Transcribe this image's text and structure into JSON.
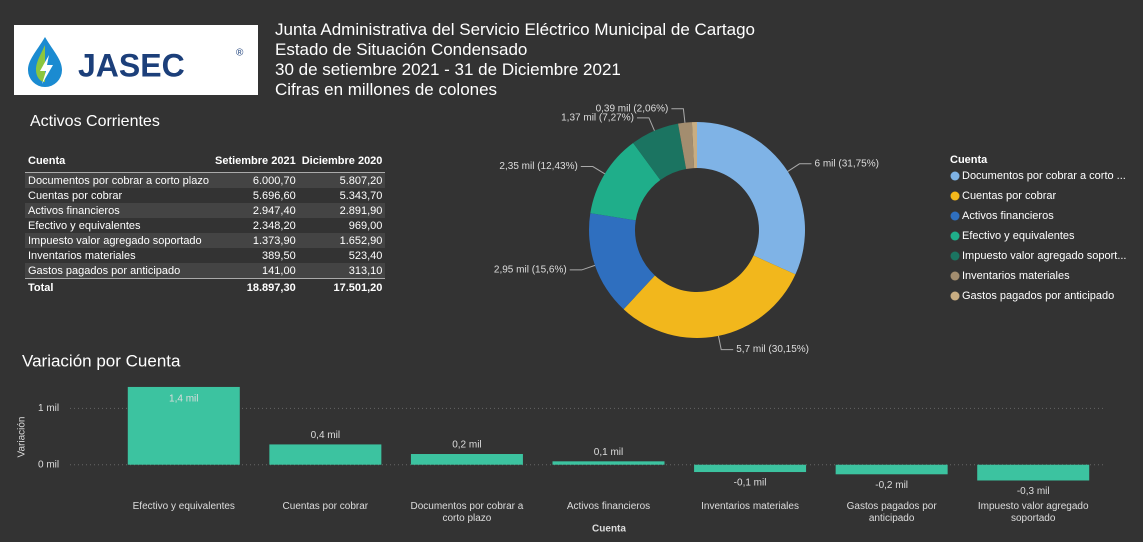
{
  "header": {
    "logo_text": "JASEC",
    "logo_mark": "®",
    "lines": [
      "Junta Administrativa del Servicio Eléctrico Municipal de Cartago",
      "Estado de Situación Condensado",
      "30 de setiembre 2021 - 31 de Diciembre 2021",
      "Cifras en millones de colones"
    ]
  },
  "table": {
    "title": "Activos Corrientes",
    "columns": [
      "Cuenta",
      "Setiembre 2021",
      "Diciembre 2020"
    ],
    "rows": [
      [
        "Documentos por cobrar a corto plazo",
        "6.000,70",
        "5.807,20"
      ],
      [
        "Cuentas por cobrar",
        "5.696,60",
        "5.343,70"
      ],
      [
        "Activos financieros",
        "2.947,40",
        "2.891,90"
      ],
      [
        "Efectivo y equivalentes",
        "2.348,20",
        "969,00"
      ],
      [
        "Impuesto valor agregado soportado",
        "1.373,90",
        "1.652,90"
      ],
      [
        "Inventarios materiales",
        "389,50",
        "523,40"
      ],
      [
        "Gastos pagados por anticipado",
        "141,00",
        "313,10"
      ]
    ],
    "total": [
      "Total",
      "18.897,30",
      "17.501,20"
    ]
  },
  "chart_data": [
    {
      "type": "pie",
      "legend_title": "Cuenta",
      "legend": "right",
      "categories": [
        "Documentos por cobrar a corto ...",
        "Cuentas por cobrar",
        "Activos financieros",
        "Efectivo y equivalentes",
        "Impuesto valor agregado soport...",
        "Inventarios materiales",
        "Gastos pagados por anticipado"
      ],
      "values": [
        31.75,
        30.15,
        15.6,
        12.43,
        7.27,
        2.06,
        0.75
      ],
      "value_labels": [
        "6 mil (31,75%)",
        "5,7 mil (30,15%)",
        "2,95 mil (15,6%)",
        "2,35 mil (12,43%)",
        "1,37 mil (7,27%)",
        "0,39 mil (2,06%)",
        null
      ],
      "colors": [
        "#7fb3e6",
        "#f2b71c",
        "#2f6fbf",
        "#1fae8a",
        "#1b7461",
        "#a38d6f",
        "#c8ad82"
      ]
    },
    {
      "type": "bar",
      "title": "Variación por Cuenta",
      "xlabel": "Cuenta",
      "ylabel": "Variación",
      "color": "#3cc3a0",
      "grid": true,
      "categories": [
        "Efectivo y equivalentes",
        "Cuentas por cobrar",
        "Documentos por cobrar a corto plazo",
        "Activos financieros",
        "Inventarios materiales",
        "Gastos pagados por anticipado",
        "Impuesto valor agregado soportado"
      ],
      "values": [
        1.38,
        0.36,
        0.19,
        0.06,
        -0.13,
        -0.17,
        -0.28
      ],
      "value_labels": [
        "1,4 mil",
        "0,4 mil",
        "0,2 mil",
        "0,1 mil",
        "-0,1 mil",
        "-0,2 mil",
        "-0,3 mil"
      ],
      "ylim": [
        -0.36,
        1.45
      ],
      "yticks": [
        {
          "value": 0,
          "label": "0 mil"
        },
        {
          "value": 1,
          "label": "1 mil"
        }
      ]
    }
  ]
}
